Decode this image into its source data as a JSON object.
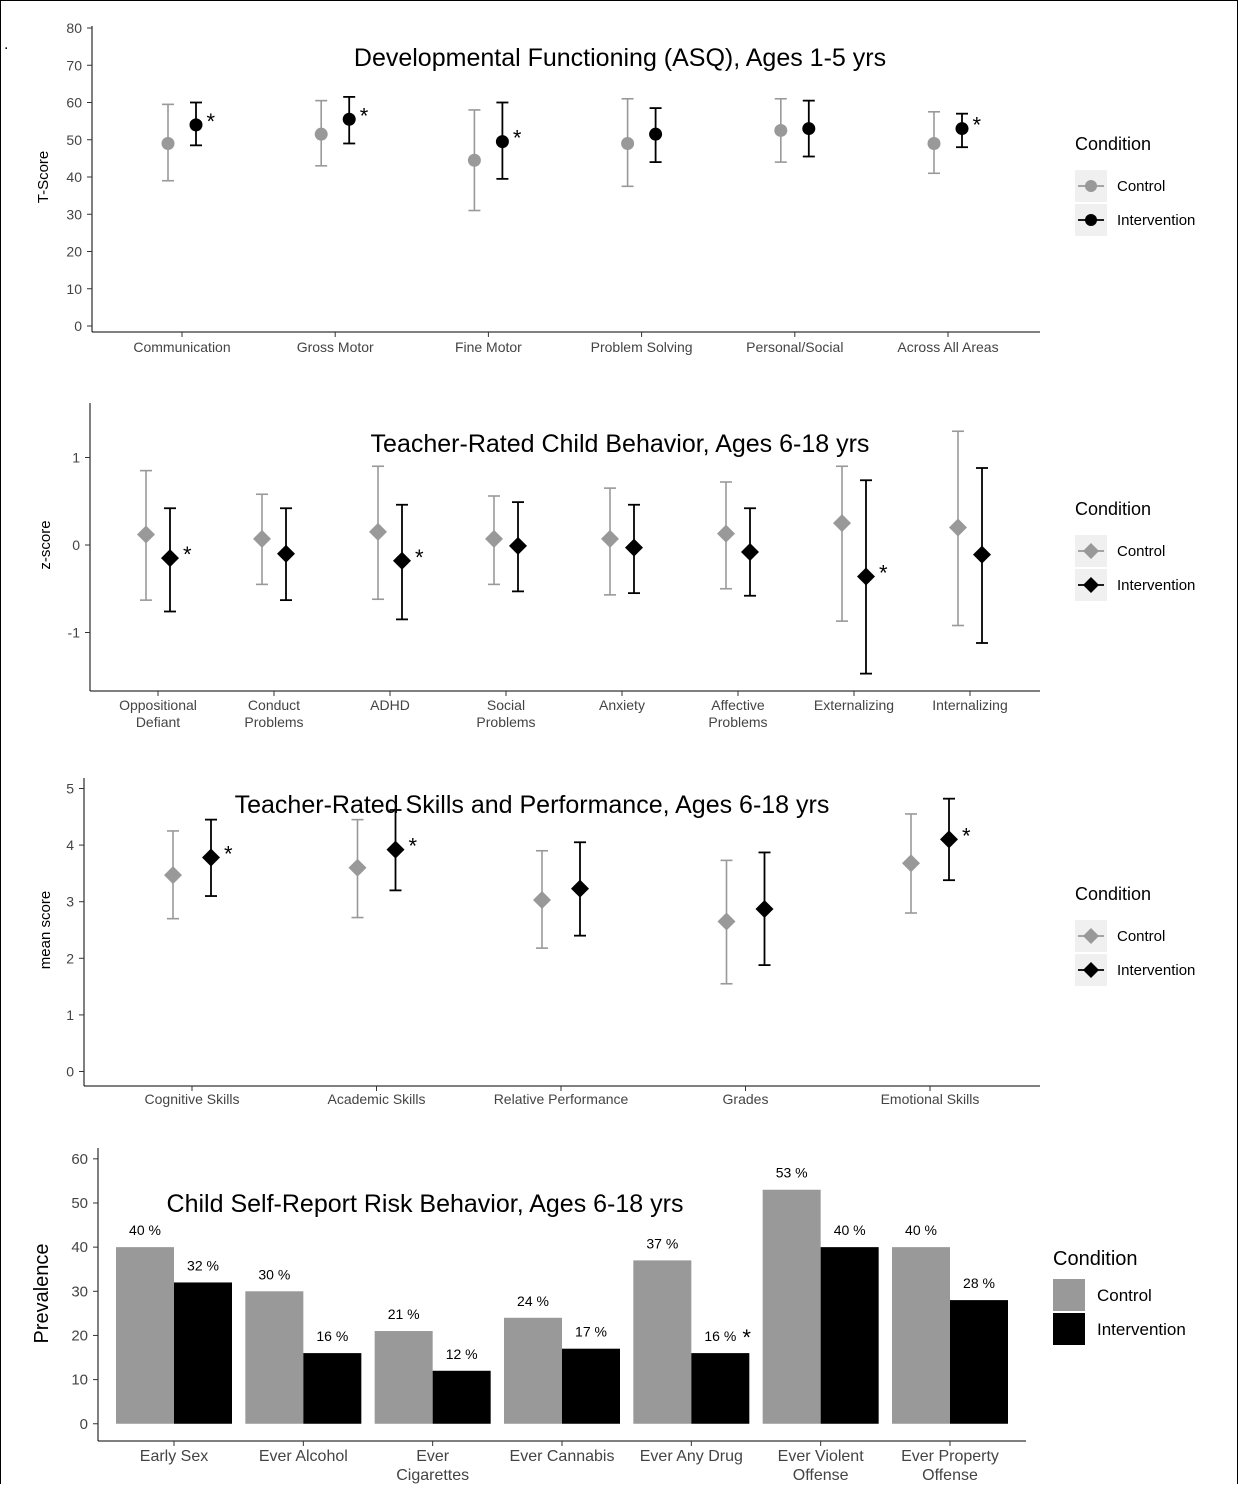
{
  "chart_data": [
    {
      "type": "scatter",
      "subtype": "point-errorbar",
      "title": "Developmental Functioning (ASQ), Ages 1-5 yrs",
      "ylabel": "T-Score",
      "ylim": [
        0,
        80
      ],
      "yticks": [
        "0",
        "10",
        "20",
        "30",
        "40",
        "50",
        "60",
        "70",
        "80"
      ],
      "yticks_values": [
        0,
        10,
        20,
        30,
        40,
        50,
        60,
        70,
        80
      ],
      "categories": [
        [
          "Communication"
        ],
        [
          "Gross Motor"
        ],
        [
          "Fine Motor"
        ],
        [
          "Problem Solving"
        ],
        [
          "Personal/Social"
        ],
        [
          "Across All Areas"
        ]
      ],
      "legend": {
        "title": "Condition",
        "position": "right",
        "items": [
          "Control",
          "Intervention"
        ]
      },
      "grid": false,
      "marker": "circle",
      "series": [
        {
          "name": "Control",
          "color": "#999999",
          "values": [
            49,
            51.5,
            44.5,
            49,
            52.5,
            49
          ],
          "lower": [
            39,
            43,
            31,
            37.5,
            44,
            41
          ],
          "upper": [
            59.5,
            60.5,
            58,
            61,
            61,
            57.5
          ]
        },
        {
          "name": "Intervention",
          "color": "#000000",
          "values": [
            54,
            55.5,
            49.5,
            51.5,
            53,
            53
          ],
          "lower": [
            48.5,
            49,
            39.5,
            44,
            45.5,
            48
          ],
          "upper": [
            60,
            61.5,
            60,
            58.5,
            60.5,
            57
          ],
          "significant": [
            true,
            true,
            true,
            false,
            false,
            true
          ]
        }
      ],
      "significance_marker": "*"
    },
    {
      "type": "scatter",
      "subtype": "point-errorbar",
      "title": "Teacher-Rated Child Behavior, Ages 6-18 yrs",
      "ylabel": "z-score",
      "ylim": [
        -1.6,
        1.6
      ],
      "yticks": [
        "-1",
        "0",
        "1"
      ],
      "yticks_values": [
        -1,
        0,
        1
      ],
      "categories": [
        [
          "Oppositional",
          "Defiant"
        ],
        [
          "Conduct",
          "Problems"
        ],
        [
          "ADHD"
        ],
        [
          "Social",
          "Problems"
        ],
        [
          "Anxiety"
        ],
        [
          "Affective",
          "Problems"
        ],
        [
          "Externalizing"
        ],
        [
          "Internalizing"
        ]
      ],
      "legend": {
        "title": "Condition",
        "position": "right",
        "items": [
          "Control",
          "Intervention"
        ]
      },
      "grid": false,
      "marker": "diamond",
      "series": [
        {
          "name": "Control",
          "color": "#999999",
          "values": [
            0.12,
            0.07,
            0.15,
            0.07,
            0.07,
            0.13,
            0.25,
            0.2
          ],
          "lower": [
            -0.63,
            -0.45,
            -0.62,
            -0.45,
            -0.57,
            -0.5,
            -0.87,
            -0.92
          ],
          "upper": [
            0.85,
            0.58,
            0.9,
            0.56,
            0.65,
            0.72,
            0.9,
            1.3
          ]
        },
        {
          "name": "Intervention",
          "color": "#000000",
          "values": [
            -0.15,
            -0.1,
            -0.18,
            -0.01,
            -0.03,
            -0.08,
            -0.36,
            -0.11
          ],
          "lower": [
            -0.76,
            -0.63,
            -0.85,
            -0.53,
            -0.55,
            -0.58,
            -1.47,
            -1.12
          ],
          "upper": [
            0.42,
            0.42,
            0.46,
            0.49,
            0.46,
            0.42,
            0.74,
            0.88
          ],
          "significant": [
            true,
            false,
            true,
            false,
            false,
            false,
            true,
            false
          ]
        }
      ],
      "significance_marker": "*"
    },
    {
      "type": "scatter",
      "subtype": "point-errorbar",
      "title": "Teacher-Rated Skills and Performance, Ages 6-18 yrs",
      "ylabel": "mean score",
      "ylim": [
        -0.15,
        5.15
      ],
      "yticks": [
        "0",
        "1",
        "2",
        "3",
        "4",
        "5"
      ],
      "yticks_values": [
        0,
        1,
        2,
        3,
        4,
        5
      ],
      "categories": [
        [
          "Cognitive Skills"
        ],
        [
          "Academic Skills"
        ],
        [
          "Relative Performance"
        ],
        [
          "Grades"
        ],
        [
          "Emotional Skills"
        ]
      ],
      "legend": {
        "title": "Condition",
        "position": "right",
        "items": [
          "Control",
          "Intervention"
        ]
      },
      "grid": false,
      "marker": "diamond",
      "series": [
        {
          "name": "Control",
          "color": "#999999",
          "values": [
            3.47,
            3.6,
            3.03,
            2.65,
            3.68
          ],
          "lower": [
            2.7,
            2.72,
            2.18,
            1.55,
            2.8
          ],
          "upper": [
            4.25,
            4.45,
            3.9,
            3.73,
            4.55
          ]
        },
        {
          "name": "Intervention",
          "color": "#000000",
          "values": [
            3.78,
            3.92,
            3.23,
            2.87,
            4.1
          ],
          "lower": [
            3.1,
            3.2,
            2.4,
            1.88,
            3.38
          ],
          "upper": [
            4.45,
            4.62,
            4.05,
            3.87,
            4.82
          ],
          "significant": [
            true,
            true,
            false,
            false,
            true
          ]
        }
      ],
      "significance_marker": "*"
    },
    {
      "type": "bar",
      "title": "Child Self-Report Risk Behavior, Ages 6-18 yrs",
      "ylabel": "Prevalence",
      "ylim": [
        -3,
        62
      ],
      "yticks": [
        "0",
        "10",
        "20",
        "30",
        "40",
        "50",
        "60"
      ],
      "yticks_values": [
        0,
        10,
        20,
        30,
        40,
        50,
        60
      ],
      "categories": [
        [
          "Early Sex"
        ],
        [
          "Ever Alcohol"
        ],
        [
          "Ever",
          "Cigarettes"
        ],
        [
          "Ever Cannabis"
        ],
        [
          "Ever Any Drug"
        ],
        [
          "Ever Violent",
          "Offense"
        ],
        [
          "Ever Property",
          "Offense"
        ]
      ],
      "legend": {
        "title": "Condition",
        "position": "right",
        "items": [
          "Control",
          "Intervention"
        ]
      },
      "grid": false,
      "series": [
        {
          "name": "Control",
          "color": "#999999",
          "values": [
            40,
            30,
            21,
            24,
            37,
            53,
            40
          ],
          "labels": [
            "40 %",
            "30 %",
            "21 %",
            "24 %",
            "37 %",
            "53 %",
            "40 %"
          ]
        },
        {
          "name": "Intervention",
          "color": "#000000",
          "values": [
            32,
            16,
            12,
            17,
            16,
            40,
            28
          ],
          "labels": [
            "32 %",
            "16 %",
            "12 %",
            "17 %",
            "16 %",
            "40 %",
            "28 %"
          ],
          "significant": [
            false,
            false,
            false,
            false,
            true,
            false,
            false
          ]
        }
      ],
      "significance_marker": "*"
    }
  ]
}
